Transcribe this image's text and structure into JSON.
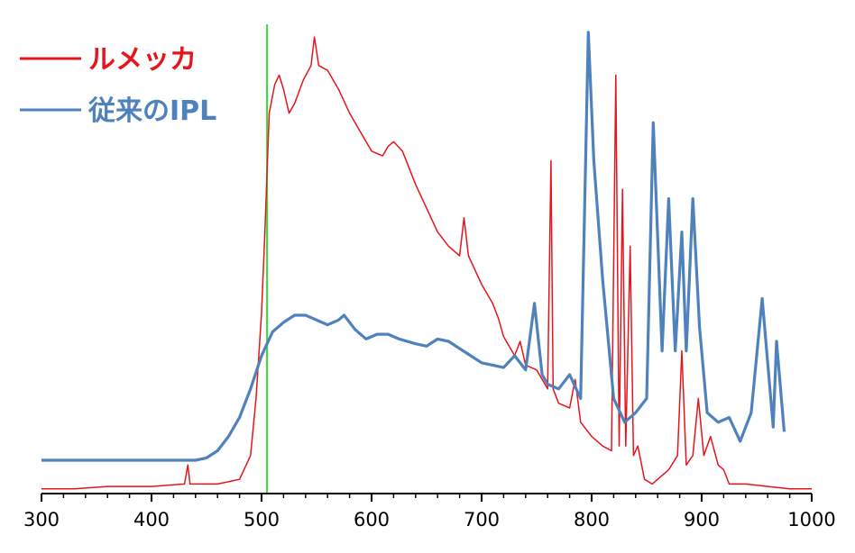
{
  "chart_data": {
    "type": "line",
    "title": "",
    "xlabel": "",
    "ylabel": "",
    "xlim": [
      300,
      1000
    ],
    "ylim": [
      0,
      1
    ],
    "x_ticks": [
      300,
      400,
      500,
      600,
      700,
      800,
      900,
      1000
    ],
    "x_tick_labels": [
      "300",
      "400",
      "500",
      "600",
      "700",
      "800",
      "900",
      "1000"
    ],
    "grid": false,
    "legend_position": "top-left",
    "reference_line": {
      "x": 505,
      "color": "#33dd33"
    },
    "series": [
      {
        "name": "ルメッカ",
        "color": "#e8141b",
        "points": [
          [
            300,
            0.01
          ],
          [
            330,
            0.01
          ],
          [
            360,
            0.015
          ],
          [
            400,
            0.015
          ],
          [
            430,
            0.02
          ],
          [
            433,
            0.06
          ],
          [
            435,
            0.02
          ],
          [
            460,
            0.02
          ],
          [
            480,
            0.03
          ],
          [
            490,
            0.08
          ],
          [
            495,
            0.2
          ],
          [
            500,
            0.38
          ],
          [
            503,
            0.55
          ],
          [
            507,
            0.8
          ],
          [
            512,
            0.86
          ],
          [
            516,
            0.88
          ],
          [
            520,
            0.85
          ],
          [
            525,
            0.8
          ],
          [
            530,
            0.82
          ],
          [
            538,
            0.87
          ],
          [
            545,
            0.9
          ],
          [
            548,
            0.96
          ],
          [
            552,
            0.9
          ],
          [
            560,
            0.89
          ],
          [
            570,
            0.85
          ],
          [
            580,
            0.8
          ],
          [
            590,
            0.76
          ],
          [
            600,
            0.72
          ],
          [
            610,
            0.71
          ],
          [
            615,
            0.73
          ],
          [
            620,
            0.74
          ],
          [
            628,
            0.72
          ],
          [
            640,
            0.65
          ],
          [
            650,
            0.6
          ],
          [
            660,
            0.55
          ],
          [
            670,
            0.52
          ],
          [
            680,
            0.5
          ],
          [
            684,
            0.58
          ],
          [
            688,
            0.5
          ],
          [
            700,
            0.44
          ],
          [
            710,
            0.4
          ],
          [
            715,
            0.37
          ],
          [
            720,
            0.33
          ],
          [
            730,
            0.29
          ],
          [
            735,
            0.32
          ],
          [
            740,
            0.27
          ],
          [
            750,
            0.26
          ],
          [
            760,
            0.22
          ],
          [
            763,
            0.7
          ],
          [
            765,
            0.22
          ],
          [
            770,
            0.19
          ],
          [
            780,
            0.18
          ],
          [
            785,
            0.24
          ],
          [
            790,
            0.15
          ],
          [
            800,
            0.12
          ],
          [
            810,
            0.1
          ],
          [
            818,
            0.09
          ],
          [
            822,
            0.88
          ],
          [
            825,
            0.1
          ],
          [
            828,
            0.64
          ],
          [
            831,
            0.1
          ],
          [
            835,
            0.52
          ],
          [
            838,
            0.08
          ],
          [
            842,
            0.1
          ],
          [
            848,
            0.03
          ],
          [
            855,
            0.02
          ],
          [
            870,
            0.05
          ],
          [
            878,
            0.08
          ],
          [
            882,
            0.3
          ],
          [
            886,
            0.06
          ],
          [
            892,
            0.08
          ],
          [
            897,
            0.2
          ],
          [
            902,
            0.08
          ],
          [
            908,
            0.12
          ],
          [
            915,
            0.06
          ],
          [
            920,
            0.05
          ],
          [
            925,
            0.02
          ],
          [
            940,
            0.02
          ],
          [
            960,
            0.015
          ],
          [
            980,
            0.01
          ],
          [
            1000,
            0.01
          ]
        ]
      },
      {
        "name": "従来のIPL",
        "color": "#4f81bd",
        "points": [
          [
            300,
            0.07
          ],
          [
            400,
            0.07
          ],
          [
            440,
            0.07
          ],
          [
            450,
            0.075
          ],
          [
            460,
            0.09
          ],
          [
            470,
            0.12
          ],
          [
            480,
            0.16
          ],
          [
            490,
            0.22
          ],
          [
            500,
            0.29
          ],
          [
            510,
            0.34
          ],
          [
            520,
            0.36
          ],
          [
            530,
            0.375
          ],
          [
            540,
            0.375
          ],
          [
            550,
            0.365
          ],
          [
            560,
            0.355
          ],
          [
            570,
            0.365
          ],
          [
            575,
            0.375
          ],
          [
            585,
            0.345
          ],
          [
            595,
            0.325
          ],
          [
            605,
            0.335
          ],
          [
            615,
            0.335
          ],
          [
            625,
            0.325
          ],
          [
            640,
            0.315
          ],
          [
            650,
            0.31
          ],
          [
            660,
            0.325
          ],
          [
            670,
            0.32
          ],
          [
            680,
            0.305
          ],
          [
            690,
            0.29
          ],
          [
            700,
            0.275
          ],
          [
            710,
            0.27
          ],
          [
            720,
            0.265
          ],
          [
            730,
            0.29
          ],
          [
            740,
            0.26
          ],
          [
            748,
            0.4
          ],
          [
            755,
            0.25
          ],
          [
            760,
            0.23
          ],
          [
            770,
            0.22
          ],
          [
            780,
            0.25
          ],
          [
            790,
            0.2
          ],
          [
            797,
            0.97
          ],
          [
            802,
            0.7
          ],
          [
            810,
            0.45
          ],
          [
            820,
            0.2
          ],
          [
            830,
            0.15
          ],
          [
            840,
            0.17
          ],
          [
            850,
            0.2
          ],
          [
            856,
            0.78
          ],
          [
            864,
            0.3
          ],
          [
            870,
            0.62
          ],
          [
            876,
            0.3
          ],
          [
            882,
            0.55
          ],
          [
            886,
            0.3
          ],
          [
            892,
            0.62
          ],
          [
            898,
            0.35
          ],
          [
            905,
            0.17
          ],
          [
            915,
            0.15
          ],
          [
            925,
            0.16
          ],
          [
            935,
            0.11
          ],
          [
            945,
            0.17
          ],
          [
            955,
            0.41
          ],
          [
            965,
            0.14
          ],
          [
            968,
            0.32
          ],
          [
            975,
            0.13
          ]
        ]
      }
    ]
  }
}
